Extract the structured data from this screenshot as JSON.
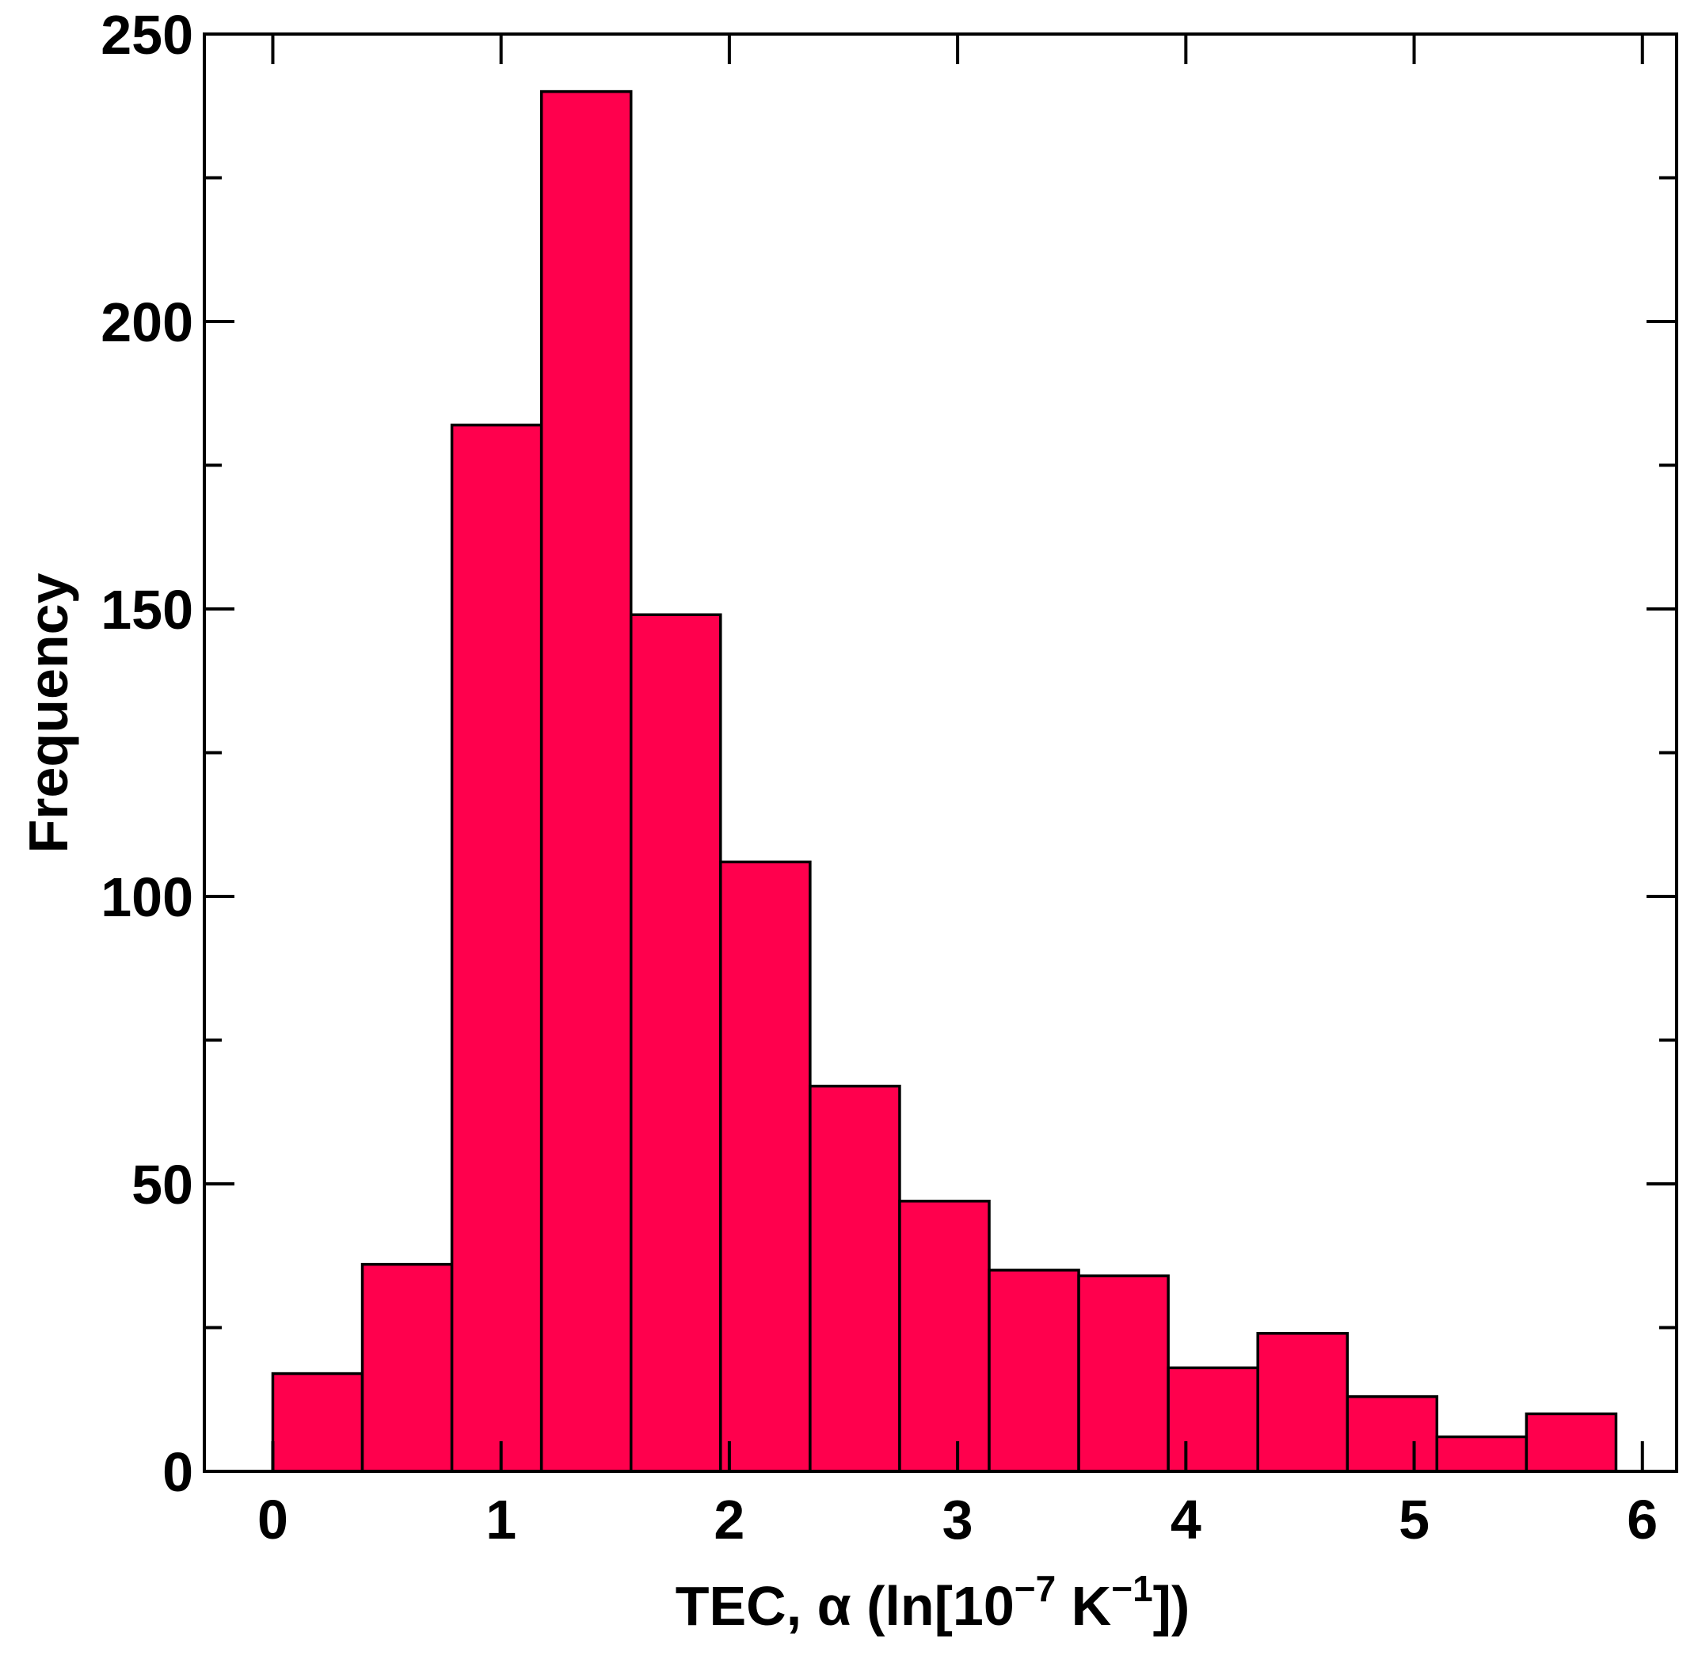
{
  "chart_data": {
    "type": "bar",
    "histogram": true,
    "bin_edges": [
      0.0,
      0.3923,
      0.7846,
      1.1769,
      1.5692,
      1.9615,
      2.3538,
      2.7461,
      3.1384,
      3.5307,
      3.923,
      4.3153,
      4.7076,
      5.0999,
      5.4922,
      5.8845
    ],
    "values": [
      17,
      36,
      182,
      240,
      149,
      106,
      67,
      47,
      35,
      34,
      18,
      24,
      13,
      6,
      10
    ],
    "xlim": [
      -0.3,
      6.15
    ],
    "ylim": [
      0,
      250
    ],
    "x_ticks": [
      0,
      1,
      2,
      3,
      4,
      5,
      6
    ],
    "x_tick_labels": [
      "0",
      "1",
      "2",
      "3",
      "4",
      "5",
      "6"
    ],
    "y_ticks": [
      0,
      50,
      100,
      150,
      200,
      250
    ],
    "y_tick_labels": [
      "0",
      "50",
      "100",
      "150",
      "200",
      "250"
    ],
    "y_minor_step": 25,
    "xlabel": {
      "prefix": "TEC, α  (ln[10",
      "exp1": "−7",
      "mid": " K",
      "exp2": "−1",
      "suffix": "])"
    },
    "ylabel": "Frequency",
    "grid": false,
    "legend": "none",
    "bar_color": "#ff004d",
    "edge_color": "#000000"
  }
}
